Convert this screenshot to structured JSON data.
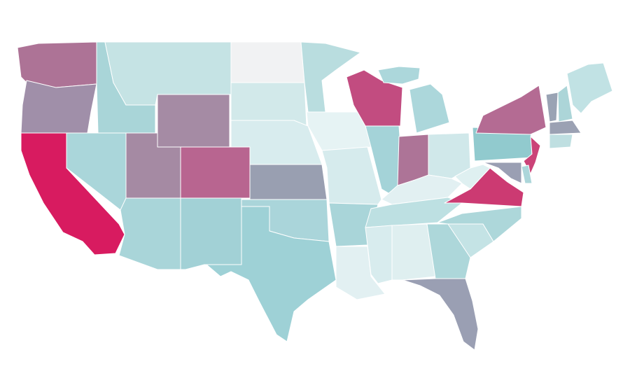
{
  "map": {
    "regions": [
      {
        "color": "#ad7396"
      },
      {
        "color": "#a08fa9"
      },
      {
        "color": "#d81b60"
      },
      {
        "color": "#aad6da"
      },
      {
        "color": "#a9d5d8"
      },
      {
        "color": "#c5e3e4"
      },
      {
        "color": "#a58ba4"
      },
      {
        "color": "#a58aa3"
      },
      {
        "color": "#b86590"
      },
      {
        "color": "#a9d5d9"
      },
      {
        "color": "#a2d1d6"
      },
      {
        "color": "#f1f2f3"
      },
      {
        "color": "#d2e9ea"
      },
      {
        "color": "#d8ecee"
      },
      {
        "color": "#999fb1"
      },
      {
        "color": "#aad5da"
      },
      {
        "color": "#9ed1d6"
      },
      {
        "color": "#b9dddf"
      },
      {
        "color": "#e6f3f4"
      },
      {
        "color": "#d6ebed"
      },
      {
        "color": "#a9d5d9"
      },
      {
        "color": "#e2f0f2"
      },
      {
        "color": "#c24c80"
      },
      {
        "color": "#a4d3d8"
      },
      {
        "color": "#acd7db"
      },
      {
        "color": "#ad7497"
      },
      {
        "color": "#d0e8ea"
      },
      {
        "color": "#e2f0f2"
      },
      {
        "color": "#bde0e2"
      },
      {
        "color": "#d8ecee"
      },
      {
        "color": "#dfeff0"
      },
      {
        "color": "#add7da"
      },
      {
        "color": "#9a9fb3"
      },
      {
        "color": "#c4e3e5"
      },
      {
        "color": "#add7da"
      },
      {
        "color": "#cc3a72"
      },
      {
        "color": "#dff0f1"
      },
      {
        "color": "#91cace"
      },
      {
        "color": "#b46b93"
      },
      {
        "color": "#cb4378"
      },
      {
        "color": "#acd6da"
      },
      {
        "color": "#9a9fb3"
      },
      {
        "color": "#9aa3b4"
      },
      {
        "color": "#acd5d8"
      },
      {
        "color": "#c1e2e4"
      },
      {
        "color": "#9ba1b3"
      },
      {
        "color": "#bfdfe1"
      }
    ]
  }
}
